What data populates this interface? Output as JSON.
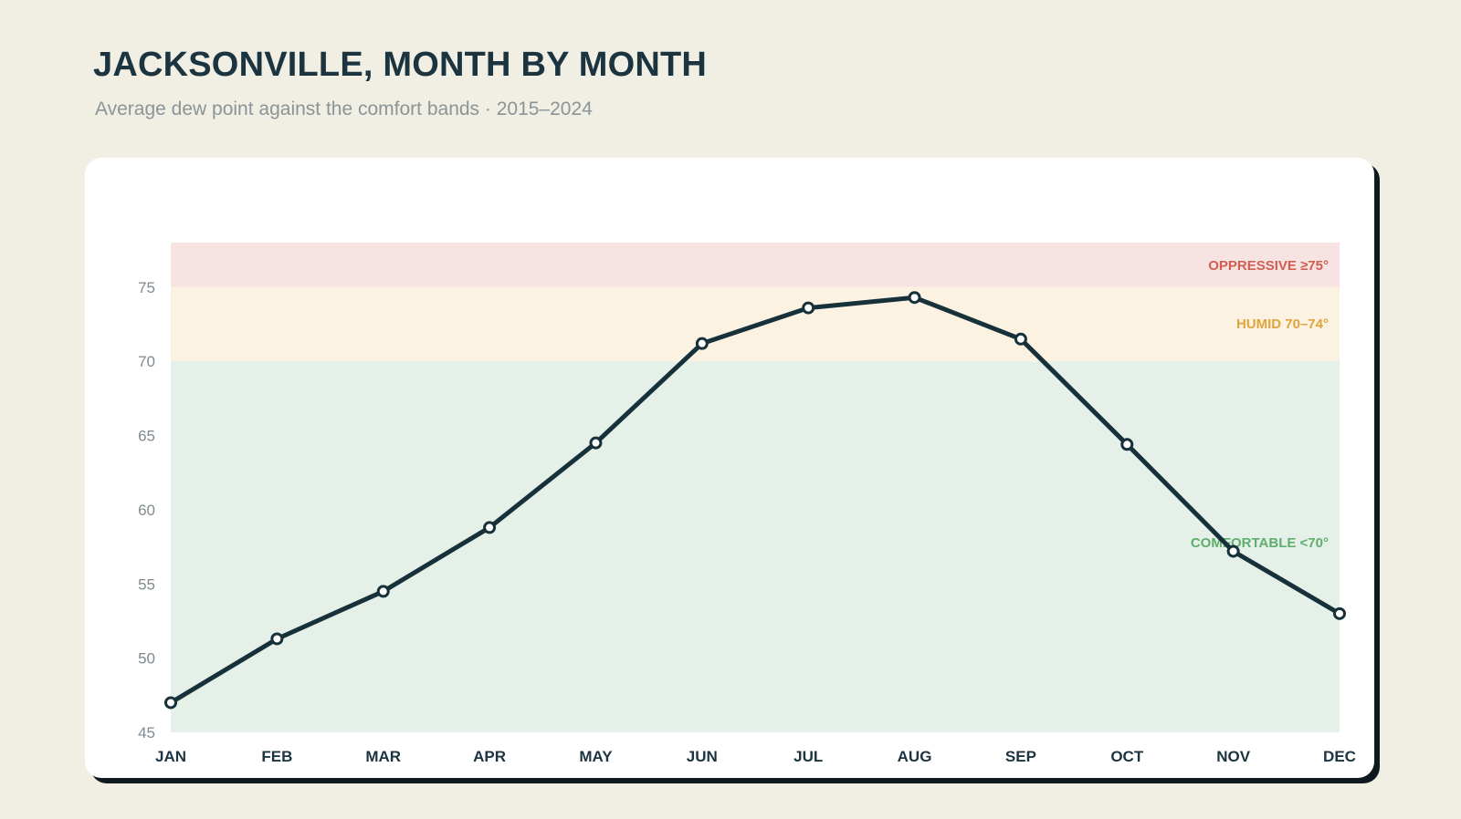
{
  "header": {
    "title": "JACKSONVILLE, MONTH BY MONTH",
    "subtitle": "Average dew point against the comfort bands · 2015–2024"
  },
  "chart_data": {
    "type": "line",
    "title": "JACKSONVILLE, MONTH BY MONTH",
    "subtitle": "Average dew point against the comfort bands · 2015–2024",
    "xlabel": "",
    "ylabel": "",
    "categories": [
      "JAN",
      "FEB",
      "MAR",
      "APR",
      "MAY",
      "JUN",
      "JUL",
      "AUG",
      "SEP",
      "OCT",
      "NOV",
      "DEC"
    ],
    "series": [
      {
        "values": [
          47.0,
          51.3,
          54.5,
          58.8,
          64.5,
          71.2,
          73.6,
          74.3,
          71.5,
          64.4,
          57.2,
          53.0
        ]
      }
    ],
    "ylim": [
      45,
      78
    ],
    "yticks": [
      45,
      50,
      55,
      60,
      65,
      70,
      75
    ],
    "grid": false,
    "bands": [
      {
        "label": "OPPRESSIVE ≥75°",
        "from": 75,
        "to": 78,
        "fill": "#f7e3e1",
        "label_color": "#cf5f52"
      },
      {
        "label": "HUMID 70–74°",
        "from": 70,
        "to": 75,
        "fill": "#fbf2e1",
        "label_color": "#e0a43c"
      },
      {
        "label": "COMFORTABLE <70°",
        "from": 45,
        "to": 70,
        "fill": "#e5f0e8",
        "label_color": "#5fae6c"
      }
    ],
    "colors": {
      "line": "#17313a",
      "marker_fill": "#ffffff"
    }
  }
}
